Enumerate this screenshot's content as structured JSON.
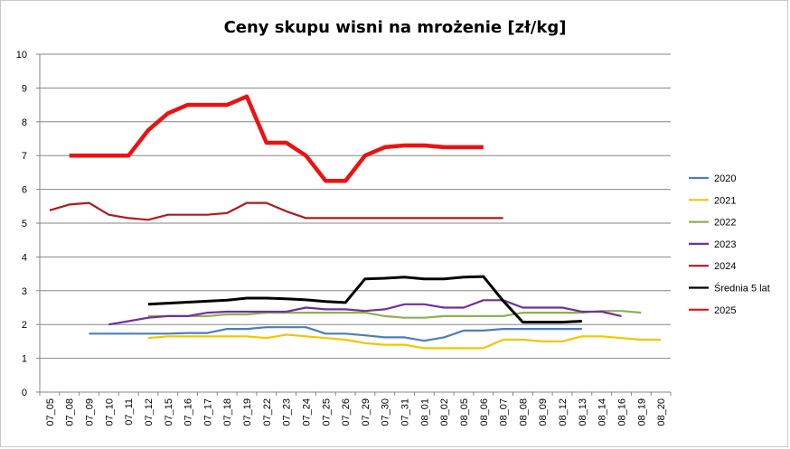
{
  "chart_data": {
    "type": "line",
    "title": "Ceny skupu wisni na mrożenie [zł/kg]",
    "xlabel": "",
    "ylabel": "",
    "ylim": [
      0,
      10
    ],
    "yticks": [
      0,
      1,
      2,
      3,
      4,
      5,
      6,
      7,
      8,
      9,
      10
    ],
    "grid": true,
    "legend_position": "right",
    "categories": [
      "07_05",
      "07_08",
      "07_09",
      "07_10",
      "07_11",
      "07_12",
      "07_15",
      "07_16",
      "07_17",
      "07_18",
      "07_19",
      "07_22",
      "07_23",
      "07_24",
      "07_25",
      "07_26",
      "07_29",
      "07_30",
      "07_31",
      "08_01",
      "08_02",
      "08_05",
      "08_06",
      "08_07",
      "08_08",
      "08_09",
      "08_12",
      "08_13",
      "08_14",
      "08_16",
      "08_19",
      "08_20"
    ],
    "series": [
      {
        "name": "2020",
        "color": "#4a7ebb",
        "width": 2.2,
        "values": [
          null,
          null,
          1.73,
          1.73,
          1.73,
          1.73,
          1.73,
          1.75,
          1.75,
          1.87,
          1.87,
          1.92,
          1.92,
          1.92,
          1.73,
          1.73,
          1.68,
          1.62,
          1.62,
          1.52,
          1.62,
          1.82,
          1.82,
          1.87,
          1.87,
          1.87,
          1.87,
          1.87,
          null,
          null,
          null,
          null
        ]
      },
      {
        "name": "2021",
        "color": "#f5c400",
        "width": 2.2,
        "values": [
          null,
          null,
          null,
          null,
          null,
          1.6,
          1.65,
          1.65,
          1.65,
          1.65,
          1.65,
          1.6,
          1.7,
          1.65,
          1.6,
          1.55,
          1.45,
          1.4,
          1.4,
          1.3,
          1.3,
          1.3,
          1.3,
          1.55,
          1.55,
          1.5,
          1.5,
          1.65,
          1.65,
          1.6,
          1.55,
          1.55
        ]
      },
      {
        "name": "2022",
        "color": "#8fb050",
        "width": 2.2,
        "values": [
          null,
          null,
          null,
          null,
          null,
          2.25,
          2.25,
          2.25,
          2.25,
          2.3,
          2.3,
          2.35,
          2.35,
          2.35,
          2.35,
          2.35,
          2.35,
          2.25,
          2.2,
          2.2,
          2.25,
          2.25,
          2.25,
          2.25,
          2.35,
          2.35,
          2.35,
          2.35,
          2.4,
          2.4,
          2.35,
          null
        ]
      },
      {
        "name": "2023",
        "color": "#7030a0",
        "width": 2.2,
        "values": [
          null,
          null,
          null,
          2.0,
          2.1,
          2.2,
          2.25,
          2.25,
          2.35,
          2.38,
          2.38,
          2.38,
          2.38,
          2.5,
          2.45,
          2.45,
          2.4,
          2.45,
          2.6,
          2.6,
          2.5,
          2.5,
          2.72,
          2.72,
          2.5,
          2.5,
          2.5,
          2.38,
          2.38,
          2.25,
          null,
          null
        ]
      },
      {
        "name": "2024",
        "color": "#b01a1a",
        "width": 2.2,
        "values": [
          5.38,
          5.55,
          5.6,
          5.25,
          5.15,
          5.1,
          5.25,
          5.25,
          5.25,
          5.3,
          5.6,
          5.6,
          5.35,
          5.15,
          5.15,
          5.15,
          5.15,
          5.15,
          5.15,
          5.15,
          5.15,
          5.15,
          5.15,
          5.15,
          null,
          null,
          null,
          null,
          null,
          null,
          null,
          null
        ]
      },
      {
        "name": "Średnia 5 lat",
        "color": "#000000",
        "width": 3,
        "values": [
          null,
          null,
          null,
          null,
          null,
          2.6,
          2.63,
          2.66,
          2.69,
          2.72,
          2.78,
          2.78,
          2.76,
          2.73,
          2.68,
          2.65,
          3.35,
          3.37,
          3.4,
          3.35,
          3.35,
          3.4,
          3.42,
          2.7,
          2.07,
          2.07,
          2.07,
          2.1,
          null,
          null,
          null,
          null
        ]
      },
      {
        "name": "2025",
        "color": "#ee1111",
        "width": 4.5,
        "values": [
          null,
          7.0,
          7.0,
          7.0,
          7.0,
          7.75,
          8.25,
          8.5,
          8.5,
          8.5,
          8.75,
          7.38,
          7.38,
          7.0,
          6.25,
          6.25,
          7.0,
          7.25,
          7.3,
          7.3,
          7.25,
          7.25,
          7.25,
          null,
          null,
          null,
          null,
          null,
          null,
          null,
          null,
          null
        ]
      }
    ]
  }
}
